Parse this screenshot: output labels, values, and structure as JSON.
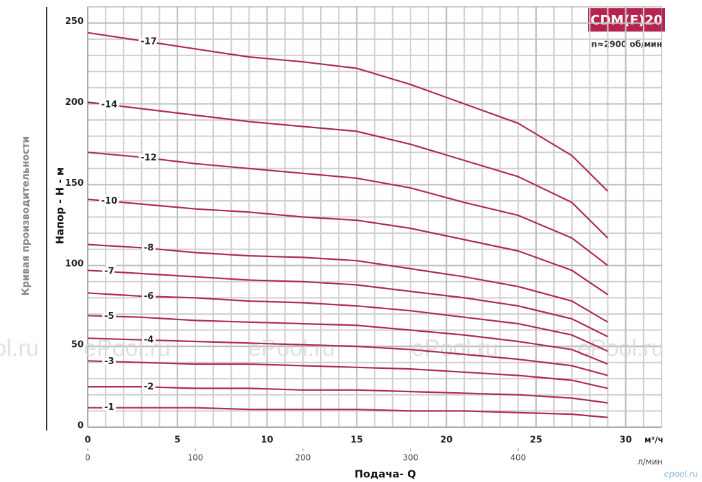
{
  "chart_data": {
    "type": "line",
    "title": "CDM(F)20",
    "subtitle": "n≈2900 об/мин",
    "ylabel": "Напор - H - м",
    "y_caption": "Кривая производительности",
    "xlabel": "Подача- Q",
    "x_unit": "м³/ч",
    "x2_unit": "л/мин",
    "x": [
      0,
      3,
      6,
      9,
      12,
      15,
      18,
      21,
      24,
      27,
      29
    ],
    "series": [
      {
        "name": "-17",
        "color": "#b02a53",
        "values": [
          244,
          239,
          234,
          229,
          226,
          222,
          212,
          200,
          188,
          168,
          146
        ]
      },
      {
        "name": "-14",
        "color": "#b02a53",
        "values": [
          201,
          197,
          193,
          189,
          186,
          183,
          175,
          165,
          155,
          139,
          117
        ]
      },
      {
        "name": "-12",
        "color": "#b02a53",
        "values": [
          170,
          167,
          163,
          160,
          157,
          154,
          148,
          139,
          131,
          117,
          100
        ]
      },
      {
        "name": "-10",
        "color": "#b02a53",
        "values": [
          141,
          138,
          135,
          133,
          130,
          128,
          123,
          116,
          109,
          97,
          82
        ]
      },
      {
        "name": "-8",
        "color": "#b02a53",
        "values": [
          113,
          111,
          108,
          106,
          105,
          103,
          98,
          93,
          87,
          78,
          65
        ]
      },
      {
        "name": "-7",
        "color": "#b02a53",
        "values": [
          97,
          95,
          93,
          91,
          90,
          88,
          84,
          80,
          75,
          67,
          56
        ]
      },
      {
        "name": "-6",
        "color": "#b02a53",
        "values": [
          83,
          81,
          80,
          78,
          77,
          75,
          72,
          68,
          64,
          57,
          47
        ]
      },
      {
        "name": "-5",
        "color": "#b02a53",
        "values": [
          69,
          68,
          66,
          65,
          64,
          63,
          60,
          57,
          53,
          48,
          39
        ]
      },
      {
        "name": "-4",
        "color": "#b02a53",
        "values": [
          55,
          54,
          53,
          52,
          51,
          50,
          48,
          45,
          42,
          38,
          32
        ]
      },
      {
        "name": "-3",
        "color": "#b02a53",
        "values": [
          41,
          40,
          39,
          39,
          38,
          37,
          36,
          34,
          32,
          29,
          24
        ]
      },
      {
        "name": "-2",
        "color": "#b02a53",
        "values": [
          25,
          25,
          24,
          24,
          23,
          23,
          22,
          21,
          20,
          18,
          15
        ]
      },
      {
        "name": "-1",
        "color": "#b02a53",
        "values": [
          12,
          12,
          12,
          11,
          11,
          11,
          10,
          10,
          9,
          8,
          6
        ]
      }
    ],
    "xlim": [
      0,
      32
    ],
    "xticks": [
      0,
      5,
      10,
      15,
      20,
      25,
      30
    ],
    "x2lim": [
      0,
      533.3
    ],
    "x2ticks": [
      0,
      100,
      200,
      300,
      400
    ],
    "ylim": [
      0,
      260
    ],
    "yticks": [
      0,
      50,
      100,
      150,
      200,
      250
    ],
    "grid": true
  },
  "watermark": "ePool.ru",
  "logo": "epool.ru"
}
